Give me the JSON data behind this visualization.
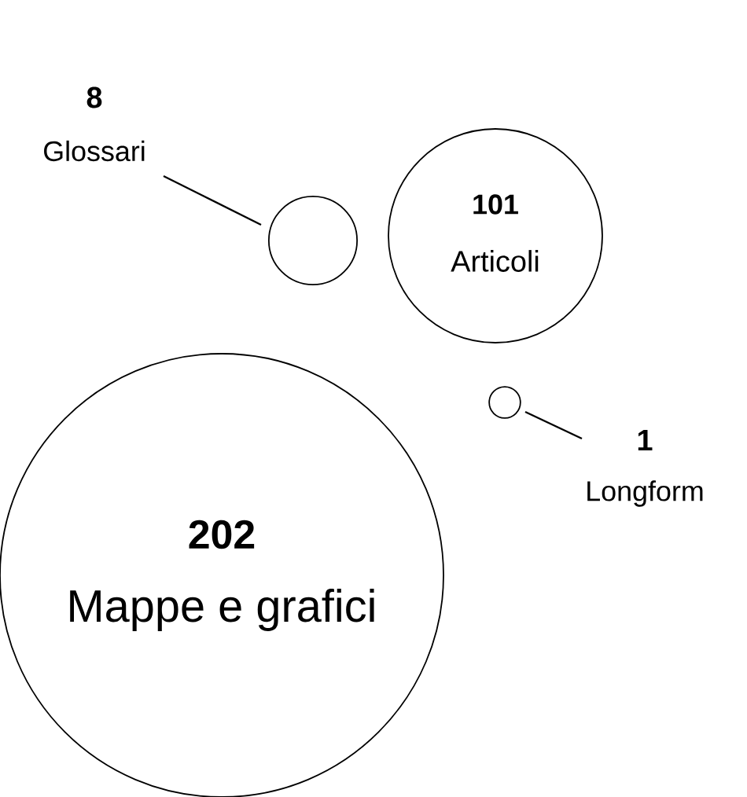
{
  "chart_data": {
    "type": "other",
    "categories": [
      "Mappe e grafici",
      "Articoli",
      "Glossari",
      "Longform"
    ],
    "values": [
      202,
      101,
      8,
      1
    ],
    "data_labels": true
  }
}
